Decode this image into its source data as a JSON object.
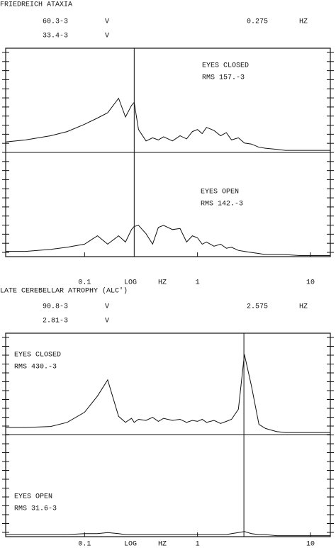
{
  "chart_data": [
    {
      "type": "line",
      "title": "FRIEDREICH ATAXIA",
      "readouts": [
        {
          "value": "60.3-3",
          "unit": "V"
        },
        {
          "value": "33.4-3",
          "unit": "V"
        }
      ],
      "cursor_x": 0.275,
      "cursor_unit": "HZ",
      "xlabel": "LOG HZ",
      "xscale": "log",
      "xlim": [
        0.02,
        15
      ],
      "xticks": [
        0.1,
        1,
        10
      ],
      "ylim": [
        0,
        100
      ],
      "x": [
        0.02,
        0.03,
        0.05,
        0.07,
        0.1,
        0.13,
        0.16,
        0.2,
        0.23,
        0.26,
        0.275,
        0.3,
        0.35,
        0.4,
        0.45,
        0.5,
        0.6,
        0.7,
        0.8,
        0.9,
        1,
        1.1,
        1.2,
        1.4,
        1.6,
        1.8,
        2,
        2.3,
        2.6,
        3,
        3.5,
        4,
        5,
        6,
        8,
        10,
        13,
        15
      ],
      "series": [
        {
          "name": "EYES CLOSED",
          "rms": "RMS 157.-3",
          "color": "#111111",
          "values": [
            10,
            12,
            16,
            20,
            27,
            33,
            38,
            52,
            34,
            45,
            48,
            22,
            11,
            14,
            12,
            15,
            11,
            16,
            13,
            20,
            22,
            18,
            24,
            21,
            16,
            19,
            12,
            14,
            9,
            8,
            5,
            4,
            3,
            2,
            2,
            2,
            2,
            2
          ]
        },
        {
          "name": "EYES OPEN",
          "rms": "RMS 142.-3",
          "color": "#111111",
          "values": [
            5,
            5,
            7,
            9,
            12,
            20,
            12,
            20,
            14,
            26,
            29,
            30,
            22,
            12,
            28,
            30,
            26,
            27,
            14,
            20,
            18,
            12,
            14,
            10,
            12,
            8,
            9,
            6,
            5,
            4,
            3,
            2,
            2,
            2,
            1,
            1,
            1,
            1
          ]
        }
      ]
    },
    {
      "type": "line",
      "title": "LATE CEREBELLAR ATROPHY (ALC')",
      "readouts": [
        {
          "value": "90.8-3",
          "unit": "V"
        },
        {
          "value": "2.81-3",
          "unit": "V"
        }
      ],
      "cursor_x": 2.575,
      "cursor_unit": "HZ",
      "xlabel": "LOG HZ",
      "xscale": "log",
      "xlim": [
        0.02,
        15
      ],
      "xticks": [
        0.1,
        1,
        10
      ],
      "ylim": [
        0,
        100
      ],
      "x": [
        0.02,
        0.03,
        0.05,
        0.07,
        0.1,
        0.13,
        0.16,
        0.2,
        0.23,
        0.26,
        0.275,
        0.3,
        0.35,
        0.4,
        0.45,
        0.5,
        0.6,
        0.7,
        0.8,
        0.9,
        1,
        1.1,
        1.2,
        1.4,
        1.6,
        1.8,
        2,
        2.3,
        2.6,
        3,
        3.5,
        4,
        5,
        6,
        8,
        10,
        13,
        15
      ],
      "series": [
        {
          "name": "EYES CLOSED",
          "rms": "RMS 430.-3",
          "color": "#111111",
          "values": [
            7,
            7,
            8,
            12,
            22,
            38,
            54,
            18,
            12,
            16,
            12,
            15,
            14,
            17,
            13,
            16,
            14,
            15,
            12,
            14,
            13,
            15,
            12,
            14,
            11,
            13,
            15,
            25,
            79,
            48,
            10,
            6,
            3,
            2,
            2,
            2,
            2,
            2
          ]
        },
        {
          "name": "EYES OPEN",
          "rms": "RMS 31.6-3",
          "color": "#111111",
          "values": [
            2,
            2,
            2,
            2,
            3,
            3,
            4,
            3,
            2,
            2,
            2,
            2,
            2,
            2,
            2,
            2,
            2,
            2,
            2,
            2,
            2,
            2,
            2,
            2,
            2,
            2,
            3,
            4,
            5,
            3,
            2,
            2,
            1,
            1,
            1,
            1,
            1,
            1
          ]
        }
      ]
    }
  ]
}
